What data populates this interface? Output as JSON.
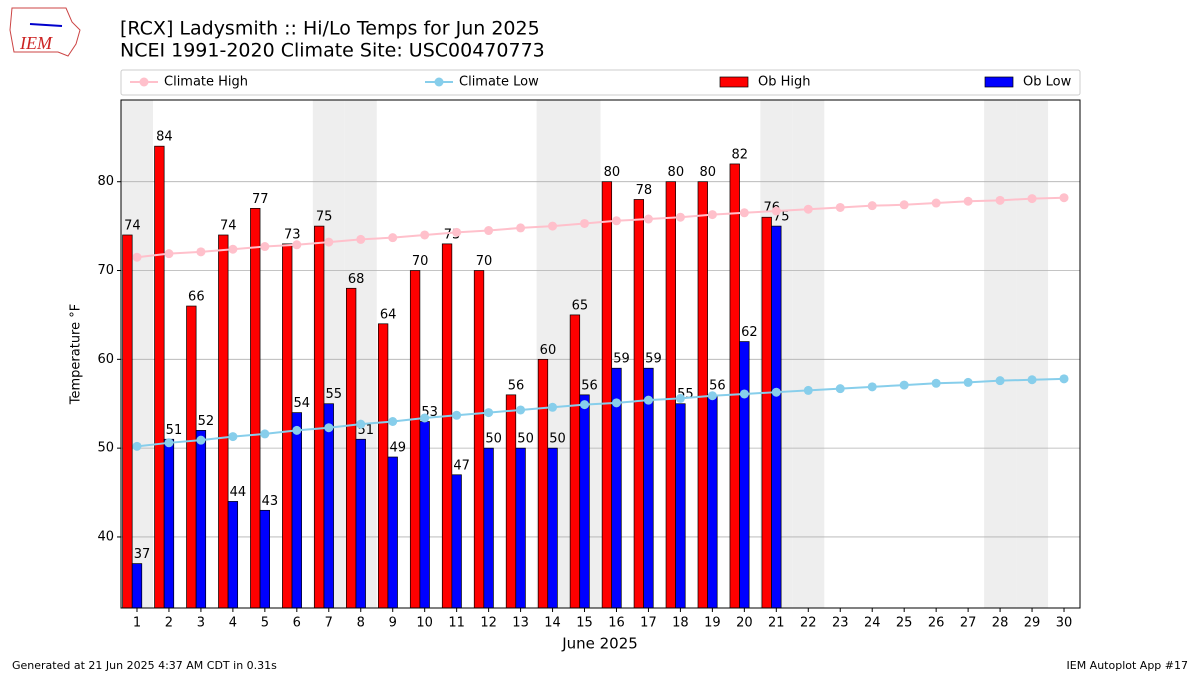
{
  "logo": "IEM",
  "footer_left": "Generated at 21 Jun 2025 4:37 AM CDT in 0.31s",
  "footer_right": "IEM Autoplot App #17",
  "chart_data": {
    "type": "bar",
    "title": "[RCX] Ladysmith :: Hi/Lo Temps for Jun 2025",
    "subtitle": "NCEI 1991-2020 Climate Site: USC00470773",
    "xlabel": "June 2025",
    "ylabel": "Temperature °F",
    "x": [
      1,
      2,
      3,
      4,
      5,
      6,
      7,
      8,
      9,
      10,
      11,
      12,
      13,
      14,
      15,
      16,
      17,
      18,
      19,
      20,
      21,
      22,
      23,
      24,
      25,
      26,
      27,
      28,
      29,
      30
    ],
    "xlim": [
      0.5,
      30.5
    ],
    "xticks": [
      1,
      2,
      3,
      4,
      5,
      6,
      7,
      8,
      9,
      10,
      11,
      12,
      13,
      14,
      15,
      16,
      17,
      18,
      19,
      20,
      21,
      22,
      23,
      24,
      25,
      26,
      27,
      28,
      29,
      30
    ],
    "ylim": [
      32,
      89.2
    ],
    "yticks": [
      40,
      50,
      60,
      70,
      80
    ],
    "grid": true,
    "shaded_days": [
      1,
      7,
      8,
      14,
      15,
      21,
      22,
      28,
      29
    ],
    "shade_color": "#eeeeee",
    "series": [
      {
        "name": "Climate High",
        "type": "line",
        "color": "pink",
        "values": [
          71.5,
          71.9,
          72.1,
          72.4,
          72.7,
          72.9,
          73.2,
          73.5,
          73.7,
          74.0,
          74.3,
          74.5,
          74.8,
          75.0,
          75.3,
          75.6,
          75.8,
          76.0,
          76.3,
          76.5,
          76.7,
          76.9,
          77.1,
          77.3,
          77.4,
          77.6,
          77.8,
          77.9,
          78.1,
          78.2
        ]
      },
      {
        "name": "Climate Low",
        "type": "line",
        "color": "skyblue",
        "values": [
          50.2,
          50.6,
          50.9,
          51.3,
          51.6,
          52.0,
          52.3,
          52.7,
          53.0,
          53.4,
          53.7,
          54.0,
          54.3,
          54.6,
          54.9,
          55.1,
          55.4,
          55.6,
          55.9,
          56.1,
          56.3,
          56.5,
          56.7,
          56.9,
          57.1,
          57.3,
          57.4,
          57.6,
          57.7,
          57.8
        ]
      },
      {
        "name": "Ob High",
        "type": "bar",
        "color": "red",
        "values": [
          74,
          84,
          66,
          74,
          77,
          73,
          75,
          68,
          64,
          70,
          73,
          70,
          56,
          60,
          65,
          80,
          78,
          80,
          80,
          82,
          76,
          null,
          null,
          null,
          null,
          null,
          null,
          null,
          null,
          null
        ]
      },
      {
        "name": "Ob Low",
        "type": "bar",
        "color": "blue",
        "values": [
          37,
          51,
          52,
          44,
          43,
          54,
          55,
          51,
          49,
          53,
          47,
          50,
          50,
          50,
          56,
          59,
          59,
          55,
          56,
          62,
          75,
          null,
          null,
          null,
          null,
          null,
          null,
          null,
          null,
          null
        ]
      }
    ]
  }
}
